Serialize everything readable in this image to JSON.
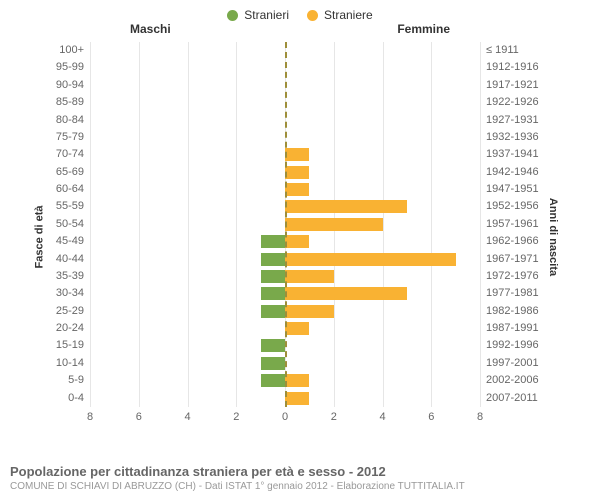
{
  "legend": {
    "male": {
      "label": "Stranieri",
      "color": "#79a94b"
    },
    "female": {
      "label": "Straniere",
      "color": "#f9b233"
    }
  },
  "headers": {
    "left": "Maschi",
    "right": "Femmine"
  },
  "axis": {
    "left_title": "Fasce di età",
    "right_title": "Anni di nascita",
    "xlim": 8,
    "ticks": [
      8,
      6,
      4,
      2,
      0,
      2,
      4,
      6,
      8
    ],
    "grid_color": "#e6e6e6",
    "center_color": "#9e8f3a"
  },
  "rows": [
    {
      "age": "100+",
      "birth": "≤ 1911",
      "m": 0,
      "f": 0
    },
    {
      "age": "95-99",
      "birth": "1912-1916",
      "m": 0,
      "f": 0
    },
    {
      "age": "90-94",
      "birth": "1917-1921",
      "m": 0,
      "f": 0
    },
    {
      "age": "85-89",
      "birth": "1922-1926",
      "m": 0,
      "f": 0
    },
    {
      "age": "80-84",
      "birth": "1927-1931",
      "m": 0,
      "f": 0
    },
    {
      "age": "75-79",
      "birth": "1932-1936",
      "m": 0,
      "f": 0
    },
    {
      "age": "70-74",
      "birth": "1937-1941",
      "m": 0,
      "f": 1
    },
    {
      "age": "65-69",
      "birth": "1942-1946",
      "m": 0,
      "f": 1
    },
    {
      "age": "60-64",
      "birth": "1947-1951",
      "m": 0,
      "f": 1
    },
    {
      "age": "55-59",
      "birth": "1952-1956",
      "m": 0,
      "f": 5
    },
    {
      "age": "50-54",
      "birth": "1957-1961",
      "m": 0,
      "f": 4
    },
    {
      "age": "45-49",
      "birth": "1962-1966",
      "m": 1,
      "f": 1
    },
    {
      "age": "40-44",
      "birth": "1967-1971",
      "m": 1,
      "f": 7
    },
    {
      "age": "35-39",
      "birth": "1972-1976",
      "m": 1,
      "f": 2
    },
    {
      "age": "30-34",
      "birth": "1977-1981",
      "m": 1,
      "f": 5
    },
    {
      "age": "25-29",
      "birth": "1982-1986",
      "m": 1,
      "f": 2
    },
    {
      "age": "20-24",
      "birth": "1987-1991",
      "m": 0,
      "f": 1
    },
    {
      "age": "15-19",
      "birth": "1992-1996",
      "m": 1,
      "f": 0
    },
    {
      "age": "10-14",
      "birth": "1997-2001",
      "m": 1,
      "f": 0
    },
    {
      "age": "5-9",
      "birth": "2002-2006",
      "m": 1,
      "f": 1
    },
    {
      "age": "0-4",
      "birth": "2007-2011",
      "m": 0,
      "f": 1
    }
  ],
  "footer": {
    "title": "Popolazione per cittadinanza straniera per età e sesso - 2012",
    "subtitle": "COMUNE DI SCHIAVI DI ABRUZZO (CH) - Dati ISTAT 1° gennaio 2012 - Elaborazione TUTTITALIA.IT"
  },
  "colors": {
    "text_dark": "#333333",
    "text_mid": "#666666",
    "text_light": "#999999"
  }
}
